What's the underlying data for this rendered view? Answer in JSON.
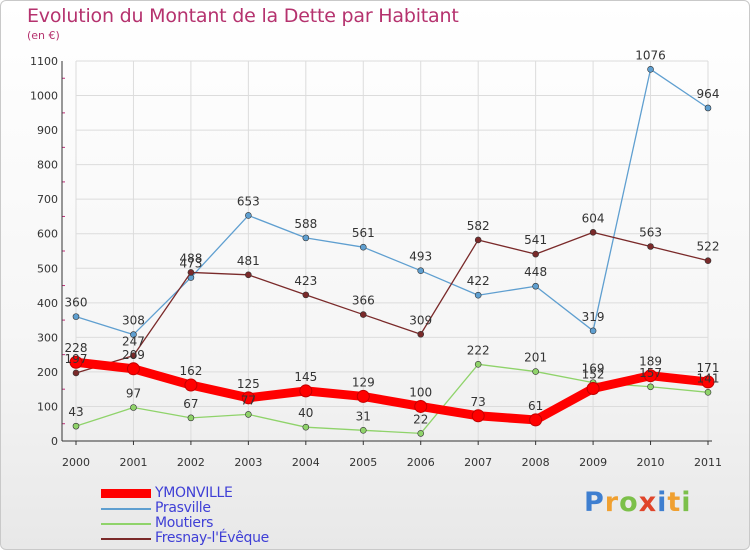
{
  "title": "Evolution du Montant de la Dette par Habitant",
  "subtitle": "(en €)",
  "brand": {
    "text": "Proxiti",
    "letters": [
      {
        "ch": "P",
        "color": "#3f7fd0"
      },
      {
        "ch": "r",
        "color": "#f0a030"
      },
      {
        "ch": "o",
        "color": "#7cc04a"
      },
      {
        "ch": "x",
        "color": "#e0452a"
      },
      {
        "ch": "i",
        "color": "#3f7fd0"
      },
      {
        "ch": "t",
        "color": "#f0a030"
      },
      {
        "ch": "i",
        "color": "#7cc04a"
      }
    ]
  },
  "chart_data": {
    "type": "line",
    "title": "Evolution du Montant de la Dette par Habitant",
    "ylabel": "(en €)",
    "xlabel": "",
    "x": [
      "2000",
      "2001",
      "2002",
      "2003",
      "2004",
      "2005",
      "2006",
      "2007",
      "2008",
      "2009",
      "2010",
      "2011"
    ],
    "ylim": [
      0,
      1100
    ],
    "yticks": [
      0,
      100,
      200,
      300,
      400,
      500,
      600,
      700,
      800,
      900,
      1000,
      1100
    ],
    "grid": true,
    "legend_position": "bottom-left",
    "series": [
      {
        "name": "YMONVILLE",
        "color": "#ff0000",
        "values": [
          228,
          209,
          162,
          125,
          145,
          129,
          100,
          73,
          61,
          152,
          189,
          171
        ]
      },
      {
        "name": "Prasville",
        "color": "#5f9fd0",
        "values": [
          360,
          308,
          473,
          653,
          588,
          561,
          493,
          422,
          448,
          319,
          1076,
          964
        ]
      },
      {
        "name": "Moutiers",
        "color": "#8fd36a",
        "values": [
          43,
          97,
          67,
          77,
          40,
          31,
          22,
          222,
          201,
          169,
          157,
          141
        ]
      },
      {
        "name": "Fresnay-l'Évêque",
        "color": "#7a2a2a",
        "values": [
          197,
          247,
          488,
          481,
          423,
          366,
          309,
          582,
          541,
          604,
          563,
          522
        ]
      }
    ],
    "data_labels": [
      [
        "228",
        "209",
        "162",
        "125",
        "145",
        "129",
        "100",
        "73",
        "61",
        "152",
        "189",
        "171"
      ],
      [
        "360",
        "308",
        "473",
        "653",
        "588",
        "561",
        "493",
        "422",
        "448",
        "319",
        "1076",
        "964"
      ],
      [
        "43",
        "97",
        "67",
        "77",
        "40",
        "31",
        "22",
        "222",
        "201",
        "169",
        "157",
        "141"
      ],
      [
        "197",
        "247",
        "488",
        "481",
        "423",
        "366",
        "309",
        "582",
        "541",
        "604",
        "563",
        "522"
      ]
    ]
  }
}
